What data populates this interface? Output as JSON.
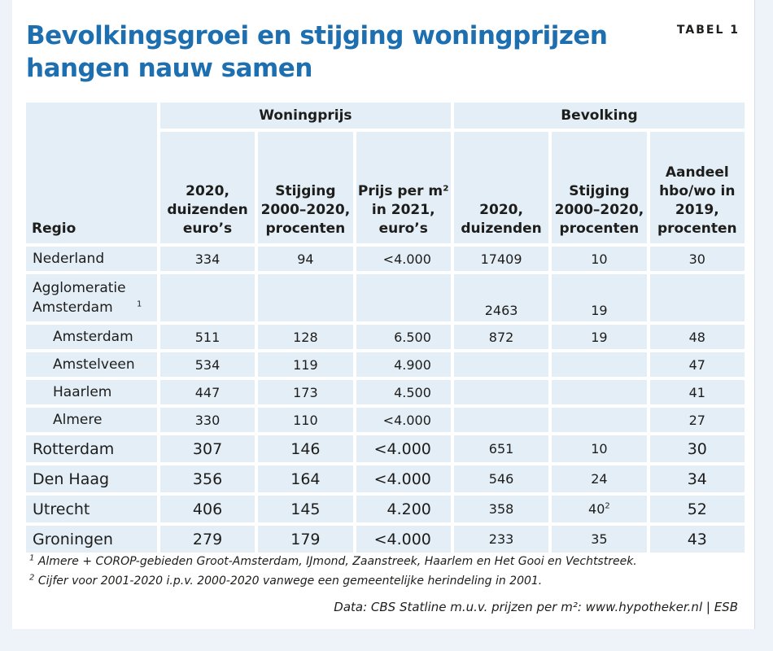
{
  "title": "Bevolkingsgroei en stijging woningprijzen hangen nauw samen",
  "tag": "TABEL 1",
  "chart_data": {
    "type": "table",
    "group_headers": [
      "Woningprijs",
      "Bevolking"
    ],
    "region_header": "Regio",
    "column_headers": [
      "2020, duizenden euro’s",
      "Stijging 2000–2020, procenten",
      "Prijs per m² in 2021, euro’s",
      "2020, duizenden",
      "Stijging 2000–2020, procenten",
      "Aandeel hbo/wo in 2019, procenten"
    ],
    "rows": [
      {
        "name": "Nederland",
        "sup": "",
        "values": [
          "334",
          "94",
          "<4.000",
          "17409",
          "10",
          "30"
        ],
        "notes": [
          "",
          "",
          "",
          "",
          "",
          ""
        ]
      },
      {
        "name": "Agglomeratie Amsterdam",
        "sup": "1",
        "values": [
          "",
          "",
          "",
          "2463",
          "19",
          ""
        ],
        "notes": [
          "",
          "",
          "",
          "",
          "",
          ""
        ]
      },
      {
        "name": "Amsterdam",
        "sup": "",
        "values": [
          "511",
          "128",
          "6.500",
          "872",
          "19",
          "48"
        ],
        "notes": [
          "",
          "",
          "",
          "",
          "",
          ""
        ]
      },
      {
        "name": "Amstelveen",
        "sup": "",
        "values": [
          "534",
          "119",
          "4.900",
          "",
          "",
          "47"
        ],
        "notes": [
          "",
          "",
          "",
          "",
          "",
          ""
        ]
      },
      {
        "name": "Haarlem",
        "sup": "",
        "values": [
          "447",
          "173",
          "4.500",
          "",
          "",
          "41"
        ],
        "notes": [
          "",
          "",
          "",
          "",
          "",
          ""
        ]
      },
      {
        "name": "Almere",
        "sup": "",
        "values": [
          "330",
          "110",
          "<4.000",
          "",
          "",
          "27"
        ],
        "notes": [
          "",
          "",
          "",
          "",
          "",
          ""
        ]
      },
      {
        "name": "Rotterdam",
        "sup": "",
        "values": [
          "307",
          "146",
          "<4.000",
          "651",
          "10",
          "30"
        ],
        "notes": [
          "",
          "",
          "",
          "",
          "",
          ""
        ]
      },
      {
        "name": "Den Haag",
        "sup": "",
        "values": [
          "356",
          "164",
          "<4.000",
          "546",
          "24",
          "34"
        ],
        "notes": [
          "",
          "",
          "",
          "",
          "",
          ""
        ]
      },
      {
        "name": "Utrecht",
        "sup": "",
        "values": [
          "406",
          "145",
          "4.200",
          "358",
          "40",
          "52"
        ],
        "notes": [
          "",
          "",
          "",
          "",
          "2",
          ""
        ]
      },
      {
        "name": "Groningen",
        "sup": "",
        "values": [
          "279",
          "179",
          "<4.000",
          "233",
          "35",
          "43"
        ],
        "notes": [
          "",
          "",
          "",
          "",
          "",
          ""
        ]
      }
    ]
  },
  "footnotes": [
    {
      "mark": "1",
      "text": "Almere + COROP-gebieden Groot-Amsterdam, IJmond, Zaanstreek, Haarlem en Het Gooi en Vechtstreek."
    },
    {
      "mark": "2",
      "text": "Cijfer voor 2001-2020 i.p.v. 2000-2020 vanwege een gemeentelijke herindeling in 2001."
    }
  ],
  "source": "Data: CBS Statline m.u.v. prijzen per m²: www.hypotheker.nl | ESB"
}
